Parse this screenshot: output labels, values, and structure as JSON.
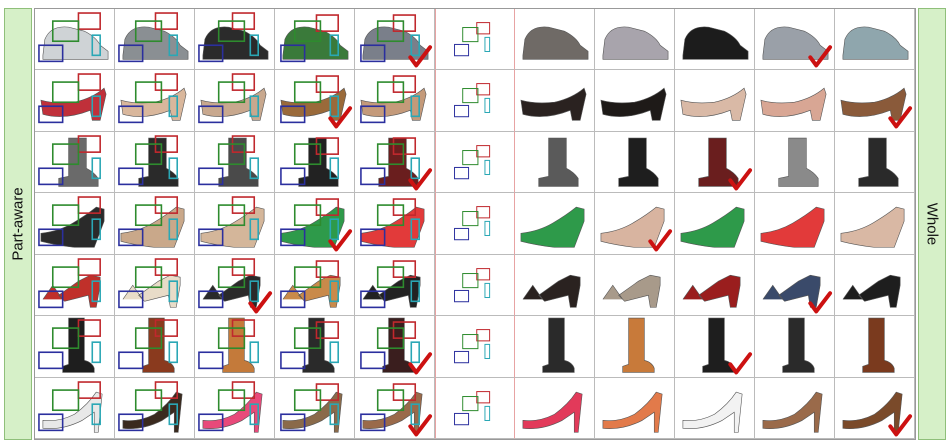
{
  "labels": {
    "left": "Part-aware",
    "right": "Whole"
  },
  "colors": {
    "head": "#c0282d",
    "body": "#2e8b2e",
    "heel": "#2aa7b5",
    "sole": "#2b2f9e",
    "check": "#cc1111"
  },
  "rows": [
    {
      "shoe": "sneaker",
      "tones": [
        "#cfd3d6",
        "#8a8f93",
        "#2b2b2b",
        "#3a7a3a",
        "#7a7f8a",
        "#ffffff",
        "#6f6a66",
        "#a8a4ac",
        "#1c1c1c",
        "#9aa0a8",
        "#8fa6ad"
      ],
      "checks": [
        4,
        9
      ]
    },
    {
      "shoe": "pump",
      "tones": [
        "#c0303a",
        "#d9b79c",
        "#c8a88e",
        "#9a6a3a",
        "#c49a7a",
        "#ffffff",
        "#2a2220",
        "#1e1a18",
        "#d9b9a6",
        "#d8a694",
        "#8a5a3a"
      ],
      "checks": [
        3,
        10
      ]
    },
    {
      "shoe": "boot",
      "tones": [
        "#6a6a6a",
        "#2a2a2a",
        "#4a4a4a",
        "#222222",
        "#6a1e1e",
        "#ffffff",
        "#5a5a5a",
        "#1e1e1e",
        "#6a1e1e",
        "#8a8a8a",
        "#2a2a2a"
      ],
      "checks": [
        4,
        8
      ]
    },
    {
      "shoe": "wedge",
      "tones": [
        "#2a2a2a",
        "#c9a88a",
        "#d4b69a",
        "#2e9a4a",
        "#e23a3a",
        "#ffffff",
        "#2e9a4a",
        "#d8b4a0",
        "#2e9a4a",
        "#e23a3a",
        "#d9b8a4"
      ],
      "checks": [
        3,
        7
      ]
    },
    {
      "shoe": "sandal",
      "tones": [
        "#c0302a",
        "#e8dcc8",
        "#2a2a2a",
        "#c98a4a",
        "#222222",
        "#ffffff",
        "#2a2220",
        "#a89a8a",
        "#9a1e1e",
        "#3a4a6a",
        "#1e1e1e"
      ],
      "checks": [
        2,
        9
      ]
    },
    {
      "shoe": "tallboot",
      "tones": [
        "#1e1e1e",
        "#8a3a1e",
        "#c47a3a",
        "#2a2a2a",
        "#3a1e1e",
        "#ffffff",
        "#2a2a2a",
        "#c87a3a",
        "#1e1e1e",
        "#2a2a2a",
        "#7a3a1e"
      ],
      "checks": [
        4,
        8
      ]
    },
    {
      "shoe": "heel",
      "tones": [
        "#e8e8e8",
        "#3a2a1e",
        "#e84a7a",
        "#8a6a4a",
        "#9a6a4a",
        "#ffffff",
        "#e23a5a",
        "#e27a4a",
        "#f2f2f2",
        "#9a6a4a",
        "#7a4a2a"
      ],
      "checks": [
        4,
        10
      ]
    }
  ]
}
